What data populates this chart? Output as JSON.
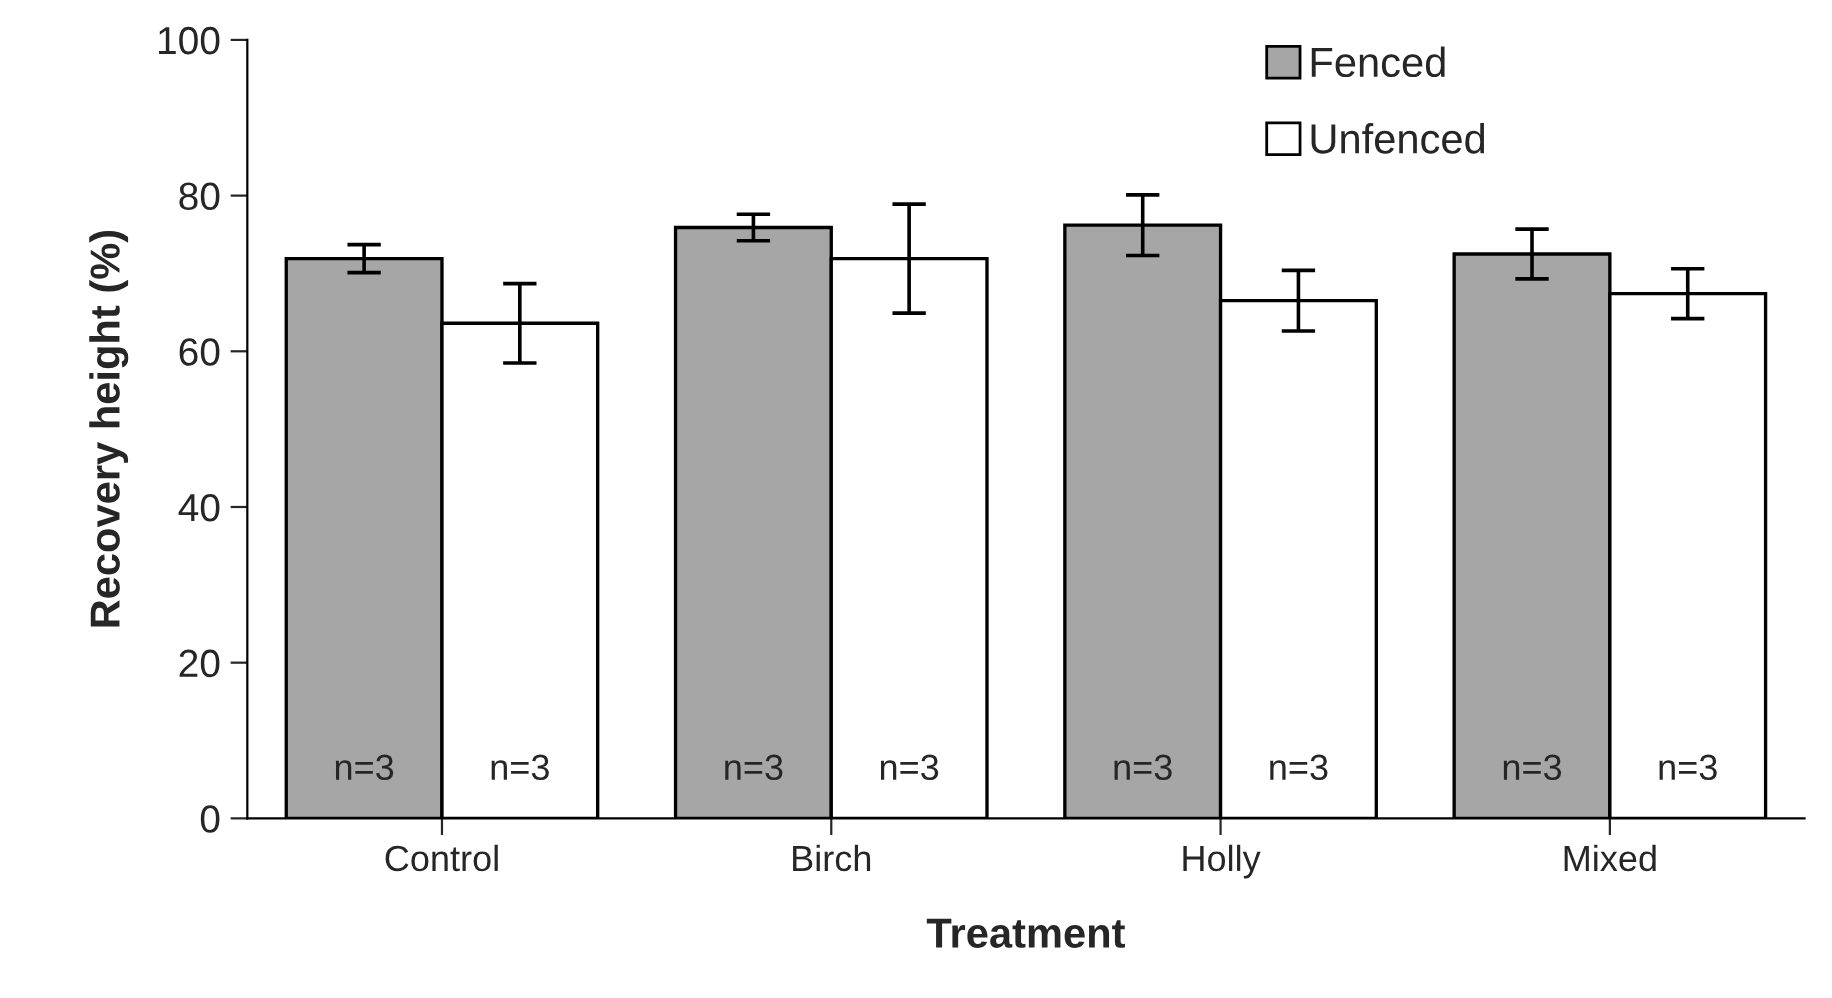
{
  "chart_data": {
    "type": "bar",
    "xlabel": "Treatment",
    "ylabel": "Recovery height (%)",
    "categories": [
      "Control",
      "Birch",
      "Holly",
      "Mixed"
    ],
    "series": [
      {
        "name": "Fenced",
        "color": "#a6a6a6",
        "values": [
          71.9,
          75.9,
          76.2,
          72.5
        ],
        "errors": [
          1.8,
          1.7,
          3.9,
          3.2
        ]
      },
      {
        "name": "Unfenced",
        "color": "#ffffff",
        "values": [
          63.6,
          71.9,
          66.5,
          67.4
        ],
        "errors": [
          5.1,
          7.0,
          3.9,
          3.2
        ]
      }
    ],
    "annotations": [
      "n=3",
      "n=3",
      "n=3",
      "n=3",
      "n=3",
      "n=3",
      "n=3",
      "n=3"
    ],
    "ylim": [
      0,
      100
    ],
    "yticks": [
      0,
      20,
      40,
      60,
      80,
      100
    ],
    "grid": false,
    "legend": "top right"
  }
}
